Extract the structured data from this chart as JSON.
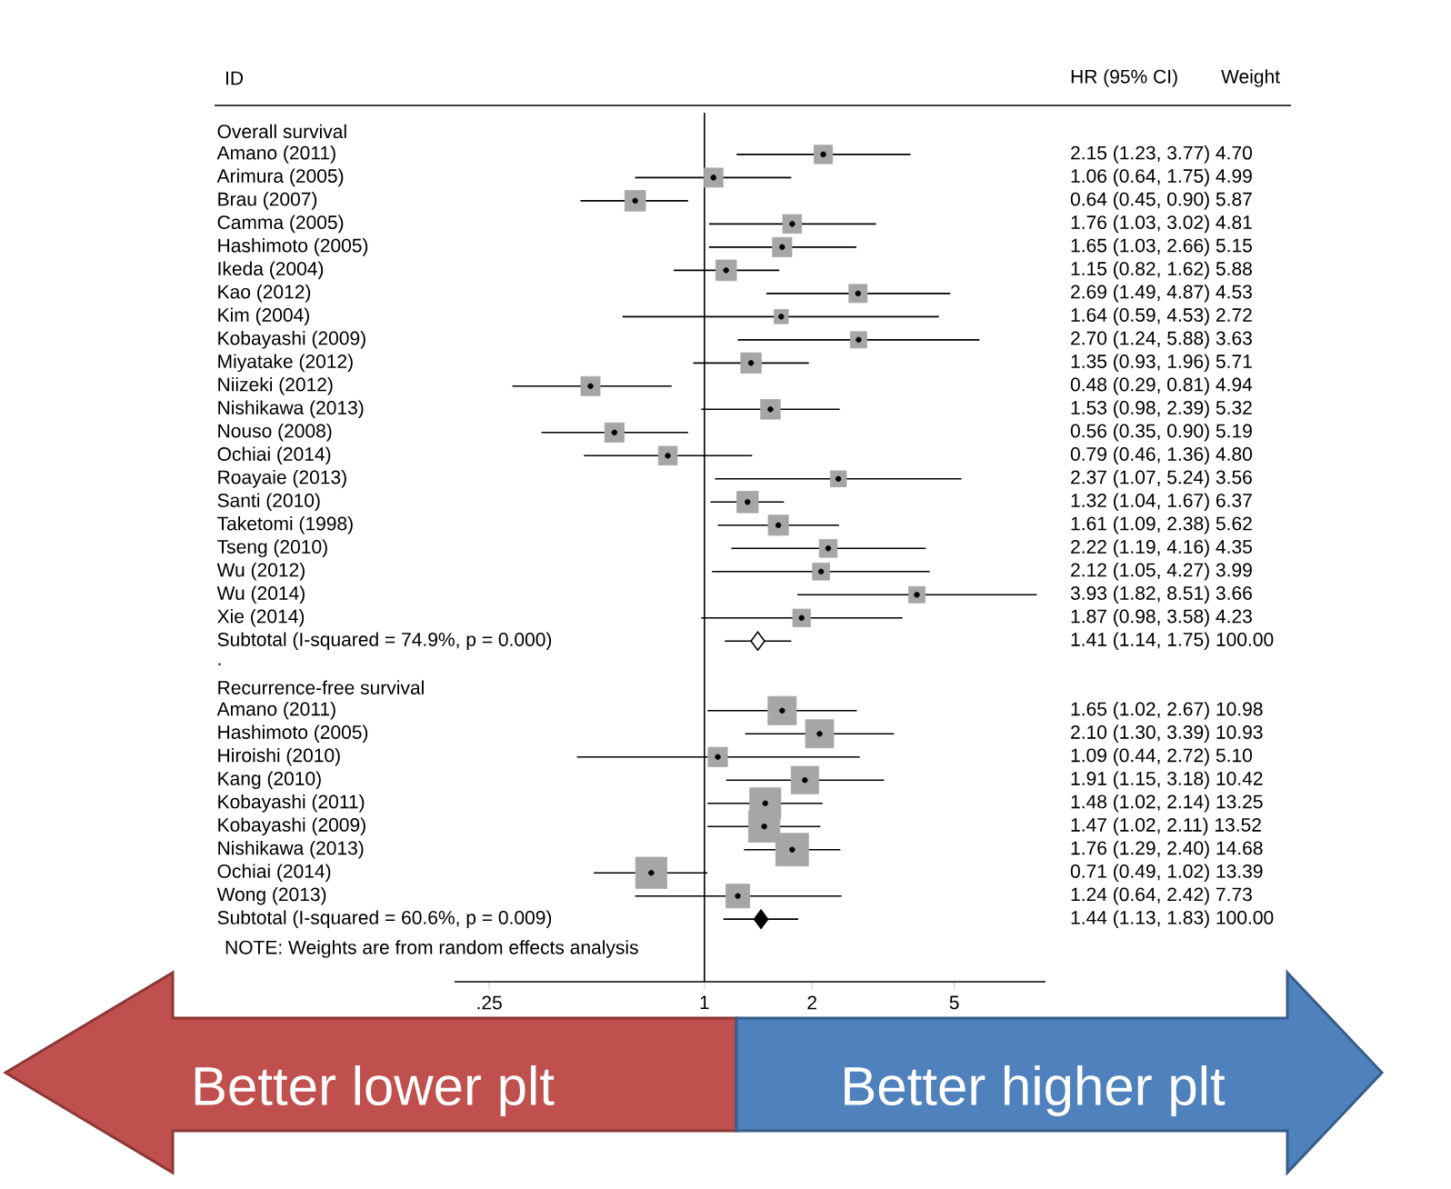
{
  "chart_data": {
    "type": "scatter",
    "orientation": "horizontal",
    "ylabel": "ID",
    "categories": [
      "Overall survival",
      "Amano (2011)",
      "Arimura (2005)",
      "Brau (2007)",
      "Camma (2005)",
      "Hashimoto (2005)",
      "Ikeda (2004)",
      "Kao (2012)",
      "Kim (2004)",
      "Kobayashi (2009)",
      "Miyatake (2012)",
      "Niizeki (2012)",
      "Nishikawa (2013)",
      "Nouso (2008)",
      "Ochiai (2014)",
      "Roayaie (2013)",
      "Santi (2010)",
      "Taketomi (1998)",
      "Tseng (2010)",
      "Wu (2012)",
      "Wu (2014)",
      "Xie (2014)",
      "Subtotal  (I-squared = 74.9%, p = 0.000)",
      ".",
      "Recurrence-free survival",
      "Amano (2011)",
      "Hashimoto (2005)",
      "Hiroishi (2010)",
      "Kang (2010)",
      "Kobayashi (2011)",
      "Kobayashi (2009)",
      "Nishikawa (2013)",
      "Ochiai (2014)",
      "Wong (2013)",
      "Subtotal  (I-squared = 60.6%, p = 0.009)"
    ],
    "series": [
      {
        "marker": "square",
        "color": "#a6a6a6",
        "values": [
          null,
          2.15,
          1.06,
          0.64,
          1.76,
          1.65,
          1.15,
          2.69,
          1.64,
          2.7,
          1.35,
          0.48,
          1.53,
          0.56,
          0.79,
          2.37,
          1.32,
          1.61,
          2.22,
          2.12,
          3.93,
          1.87,
          null,
          null,
          null,
          1.65,
          2.1,
          1.09,
          1.91,
          1.48,
          1.47,
          1.76,
          0.71,
          1.24,
          null
        ],
        "errors": [
          null,
          [
            1.23,
            3.77
          ],
          [
            0.64,
            1.75
          ],
          [
            0.45,
            0.9
          ],
          [
            1.03,
            3.02
          ],
          [
            1.03,
            2.66
          ],
          [
            0.82,
            1.62
          ],
          [
            1.49,
            4.87
          ],
          [
            0.59,
            4.53
          ],
          [
            1.24,
            5.88
          ],
          [
            0.93,
            1.96
          ],
          [
            0.29,
            0.81
          ],
          [
            0.98,
            2.39
          ],
          [
            0.35,
            0.9
          ],
          [
            0.46,
            1.36
          ],
          [
            1.07,
            5.24
          ],
          [
            1.04,
            1.67
          ],
          [
            1.09,
            2.38
          ],
          [
            1.19,
            4.16
          ],
          [
            1.05,
            4.27
          ],
          [
            1.82,
            8.51
          ],
          [
            0.98,
            3.58
          ],
          null,
          null,
          null,
          [
            1.02,
            2.67
          ],
          [
            1.3,
            3.39
          ],
          [
            0.44,
            2.72
          ],
          [
            1.15,
            3.18
          ],
          [
            1.02,
            2.14
          ],
          [
            1.02,
            2.11
          ],
          [
            1.29,
            2.4
          ],
          [
            0.49,
            1.02
          ],
          [
            0.64,
            2.42
          ],
          null
        ],
        "sizes": [
          null,
          0.32,
          0.34,
          0.4,
          0.33,
          0.35,
          0.4,
          0.31,
          0.19,
          0.25,
          0.39,
          0.34,
          0.36,
          0.35,
          0.33,
          0.24,
          0.43,
          0.38,
          0.3,
          0.27,
          0.25,
          0.29,
          null,
          null,
          null,
          0.75,
          0.74,
          0.35,
          0.71,
          0.9,
          0.92,
          1,
          0.91,
          0.53,
          null
        ]
      },
      {
        "marker": "diamond",
        "colors": [
          null,
          null,
          null,
          null,
          null,
          null,
          null,
          null,
          null,
          null,
          null,
          null,
          null,
          null,
          null,
          null,
          null,
          null,
          null,
          null,
          null,
          null,
          "#ffffff",
          null,
          null,
          null,
          null,
          null,
          null,
          null,
          null,
          null,
          null,
          null,
          "#000000"
        ],
        "values": [
          null,
          null,
          null,
          null,
          null,
          null,
          null,
          null,
          null,
          null,
          null,
          null,
          null,
          null,
          null,
          null,
          null,
          null,
          null,
          null,
          null,
          null,
          1.41,
          null,
          null,
          null,
          null,
          null,
          null,
          null,
          null,
          null,
          null,
          null,
          1.44
        ],
        "errors": [
          null,
          null,
          null,
          null,
          null,
          null,
          null,
          null,
          null,
          null,
          null,
          null,
          null,
          null,
          null,
          null,
          null,
          null,
          null,
          null,
          null,
          null,
          [
            1.14,
            1.75
          ],
          null,
          null,
          null,
          null,
          null,
          null,
          null,
          null,
          null,
          null,
          null,
          [
            1.13,
            1.83
          ]
        ]
      }
    ],
    "log": "x",
    "xlim": [
      0.2,
      9
    ],
    "xticks": [
      {
        "value": 0.25,
        "label": ".25"
      },
      1,
      2,
      5
    ],
    "ref_lines": [
      {
        "axis": "x",
        "value": 1
      }
    ],
    "annotations": [
      "HR (95% CI)",
      "Weight",
      "NOTE: Weights are from random effects analysis",
      "Better lower plt",
      "Better higher plt",
      "2.15 (1.23, 3.77)  4.70",
      "1.06 (0.64, 1.75)  4.99",
      "0.64 (0.45, 0.90)  5.87",
      "1.76 (1.03, 3.02)  4.81",
      "1.65 (1.03, 2.66)  5.15",
      "1.15 (0.82, 1.62)  5.88",
      "2.69 (1.49, 4.87)  4.53",
      "1.64 (0.59, 4.53)  2.72",
      "2.70 (1.24, 5.88)  3.63",
      "1.35 (0.93, 1.96)  5.71",
      "0.48 (0.29, 0.81)  4.94",
      "1.53 (0.98, 2.39)  5.32",
      "0.56 (0.35, 0.90)  5.19",
      "0.79 (0.46, 1.36)  4.80",
      "2.37 (1.07, 5.24)  3.56",
      "1.32 (1.04, 1.67)  6.37",
      "1.61 (1.09, 2.38)  5.62",
      "2.22 (1.19, 4.16)  4.35",
      "2.12 (1.05, 4.27)  3.99",
      "3.93 (1.82, 8.51)  3.66",
      "1.87 (0.98, 3.58)  4.23",
      "1.41 (1.14, 1.75)  100.00",
      "1.65 (1.02, 2.67)  10.98",
      "2.10 (1.30, 3.39)  10.93",
      "1.09 (0.44, 2.72)  5.10",
      "1.91 (1.15, 3.18)  10.42",
      "1.48 (1.02, 2.14)  13.25",
      "1.47 (1.02, 2.11)  13.52",
      "1.76 (1.29, 2.40)  14.68",
      "0.71 (0.49, 1.02)  13.39",
      "1.24 (0.64, 2.42)  7.73",
      "1.44 (1.13, 1.83)  100.00"
    ]
  }
}
